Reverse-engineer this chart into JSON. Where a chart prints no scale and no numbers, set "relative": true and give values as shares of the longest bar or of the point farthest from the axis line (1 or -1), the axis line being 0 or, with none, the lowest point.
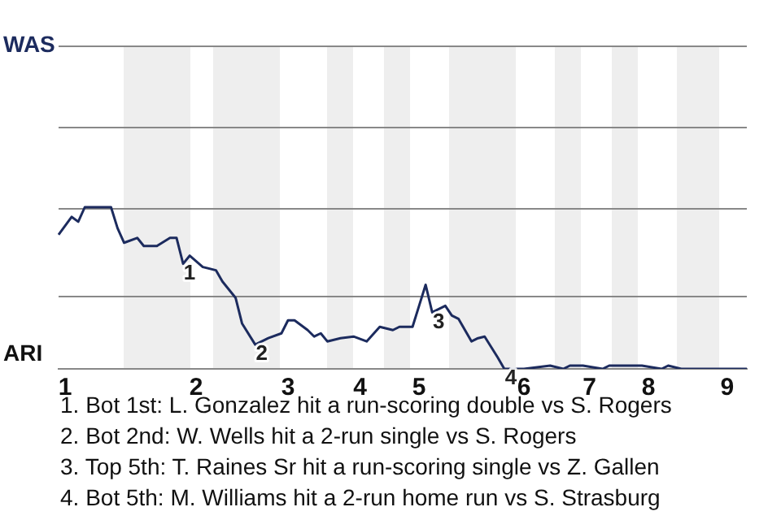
{
  "chart_data": {
    "type": "line",
    "relative": true,
    "categories": [
      null,
      "1",
      null,
      null,
      null,
      null,
      null,
      null,
      null,
      null,
      null,
      null,
      null,
      null,
      null,
      null,
      null,
      null,
      null,
      null,
      null,
      "2",
      null,
      null,
      null,
      null,
      null,
      null,
      null,
      null,
      null,
      null,
      null,
      null,
      null,
      "3",
      null,
      null,
      null,
      null,
      null,
      null,
      null,
      null,
      null,
      null,
      "4",
      null,
      null,
      null,
      null,
      null,
      null,
      null,
      null,
      "5",
      null,
      null,
      null,
      null,
      null,
      null,
      null,
      null,
      null,
      null,
      null,
      null,
      null,
      null,
      null,
      "6",
      null,
      null,
      null,
      null,
      null,
      null,
      null,
      null,
      null,
      "7",
      null,
      null,
      null,
      null,
      null,
      null,
      null,
      null,
      "8",
      null,
      null,
      null,
      null,
      null,
      null,
      null,
      null,
      null,
      null,
      null,
      "9",
      null,
      null,
      null
    ],
    "series": [
      {
        "color": "#1c2b5e",
        "values": [
          0.83,
          null,
          0.94,
          0.91,
          1,
          null,
          null,
          null,
          1,
          0.87,
          0.78,
          null,
          0.81,
          0.76,
          null,
          0.76,
          null,
          0.81,
          0.81,
          0.65,
          0.7,
          null,
          0.63,
          null,
          0.61,
          0.54,
          null,
          0.44,
          0.28,
          null,
          0.15,
          null,
          0.19,
          null,
          0.22,
          0.3,
          0.3,
          null,
          0.24,
          0.2,
          0.22,
          0.17,
          null,
          0.19,
          null,
          0.2,
          null,
          0.17,
          null,
          0.26,
          null,
          0.24,
          0.26,
          null,
          0.26,
          0.39,
          0.52,
          0.35,
          null,
          0.39,
          0.33,
          0.31,
          null,
          0.17,
          0.19,
          0.2,
          null,
          0.07,
          0,
          null,
          null,
          0,
          null,
          null,
          null,
          0.02,
          null,
          0,
          0.02,
          null,
          0.02,
          null,
          null,
          0,
          0.02,
          null,
          null,
          null,
          0.02,
          0.02,
          null,
          null,
          0,
          0.02,
          null,
          0,
          null,
          null,
          null,
          null,
          null,
          null,
          null,
          null,
          null,
          0
        ]
      }
    ],
    "marker": "none",
    "ref_lines": [
      {
        "axis": "y",
        "value": 0.455,
        "color": "#888888"
      }
    ],
    "annotations": [
      {
        "text": "1",
        "y": 0.65
      },
      {
        "text": "2",
        "y": 0.15
      },
      {
        "text": "3",
        "y": 0.35
      },
      {
        "text": "4",
        "y": 0
      },
      "WAS",
      "ARI",
      "1. Bot 1st: L. Gonzalez hit a run-scoring double vs S. Rogers",
      "2. Bot 2nd: W. Wells hit a 2-run single vs S. Rogers",
      "3. Top 5th: T. Raines Sr hit a run-scoring single vs Z. Gallen",
      "4. Bot 5th: M. Williams hit a 2-run home run vs S. Strasburg"
    ]
  }
}
